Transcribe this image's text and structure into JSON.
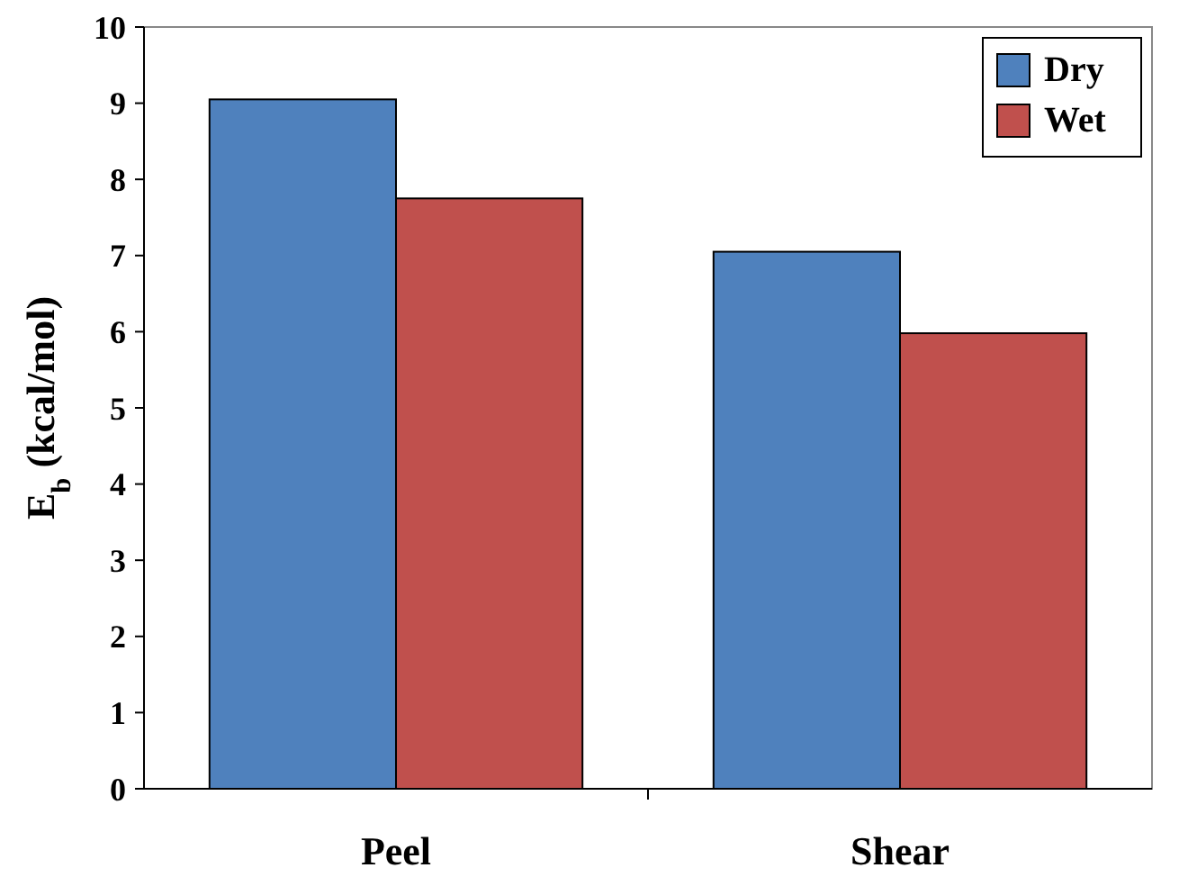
{
  "chart_data": {
    "type": "bar",
    "ylabel": "E$_{b}$ (kcal/mol)",
    "categories": [
      "Peel",
      "Shear"
    ],
    "series": [
      {
        "name": "Dry",
        "color": "#4f81bd",
        "values": [
          9.05,
          7.05
        ]
      },
      {
        "name": "Wet",
        "color": "#c0504d",
        "values": [
          7.75,
          5.98
        ]
      }
    ],
    "ylim": [
      0,
      10
    ],
    "yticks": [
      0,
      1,
      2,
      3,
      4,
      5,
      6,
      7,
      8,
      9,
      10
    ],
    "grid": false,
    "legend": "top right"
  }
}
